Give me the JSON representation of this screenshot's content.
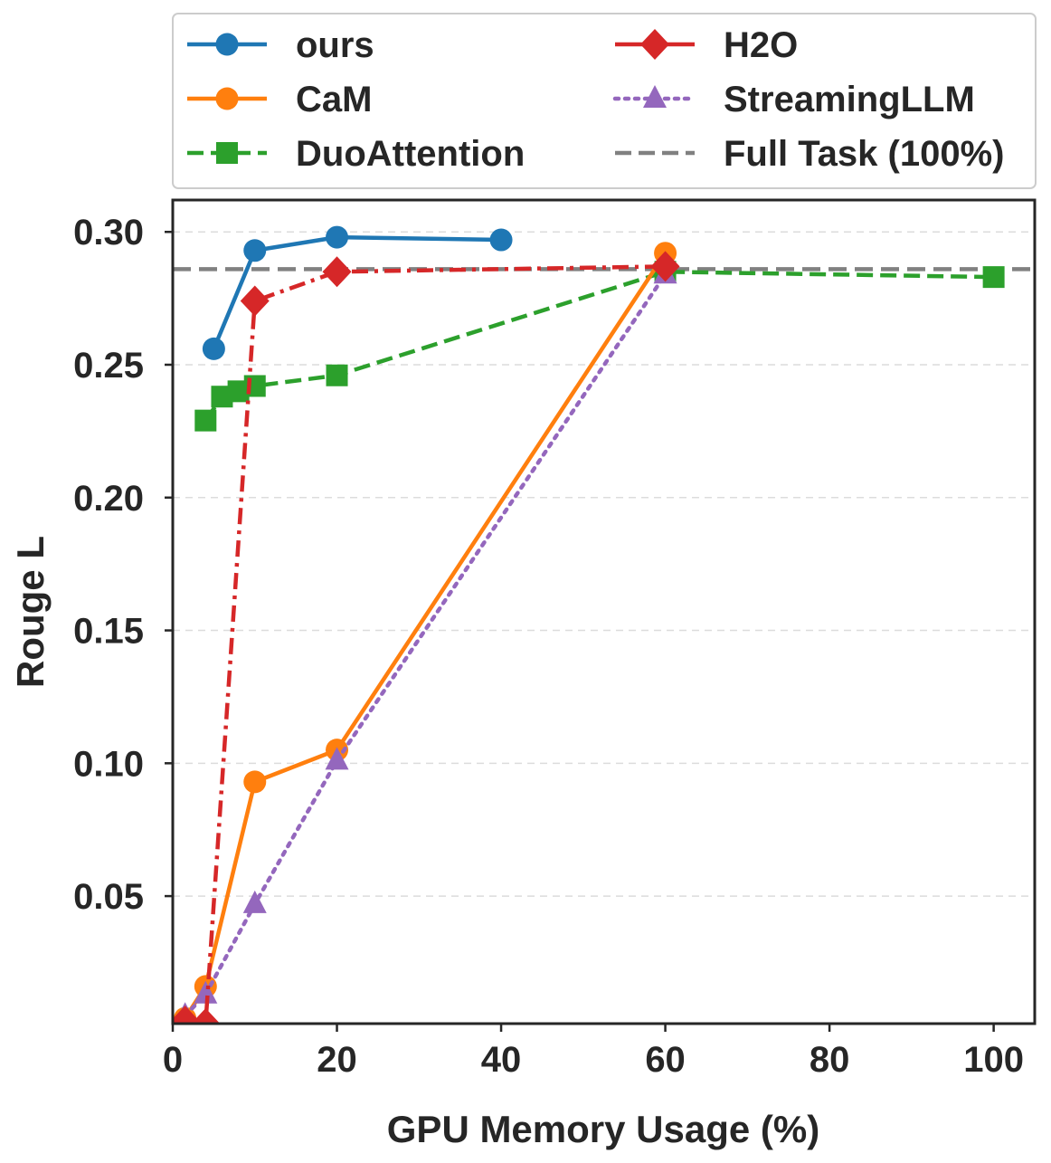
{
  "chart_data": {
    "type": "line",
    "title": "",
    "xlabel": "GPU Memory Usage (%)",
    "ylabel": "Rouge L",
    "xlim": [
      0,
      105
    ],
    "ylim": [
      0.002,
      0.312
    ],
    "xticks": [
      0,
      20,
      40,
      60,
      80,
      100
    ],
    "xtick_labels": [
      "0",
      "20",
      "40",
      "60",
      "80",
      "100"
    ],
    "yticks": [
      0.05,
      0.1,
      0.15,
      0.2,
      0.25,
      0.3
    ],
    "ytick_labels": [
      "0.05",
      "0.10",
      "0.15",
      "0.20",
      "0.25",
      "0.30"
    ],
    "grid": "horizontal dashed",
    "legend_position": "top",
    "series": [
      {
        "name": "ours",
        "color": "#1f77b4",
        "marker": "circle",
        "linestyle": "solid",
        "x": [
          5,
          10,
          20,
          40
        ],
        "y": [
          0.256,
          0.293,
          0.298,
          0.297
        ]
      },
      {
        "name": "CaM",
        "color": "#ff7f0e",
        "marker": "circle",
        "linestyle": "solid",
        "x": [
          1.5,
          4,
          10,
          20,
          60
        ],
        "y": [
          0.004,
          0.016,
          0.093,
          0.105,
          0.292
        ]
      },
      {
        "name": "DuoAttention",
        "color": "#2ca02c",
        "marker": "square",
        "linestyle": "dashed",
        "x": [
          4,
          6,
          8,
          10,
          20,
          60,
          100
        ],
        "y": [
          0.229,
          0.238,
          0.24,
          0.242,
          0.246,
          0.285,
          0.283
        ]
      },
      {
        "name": "H2O",
        "color": "#d62728",
        "marker": "diamond",
        "linestyle": "dashdot",
        "x": [
          1.5,
          4,
          10,
          20,
          60
        ],
        "y": [
          0.003,
          0.002,
          0.274,
          0.285,
          0.287
        ]
      },
      {
        "name": "StreamingLLM",
        "color": "#9467bd",
        "marker": "triangle",
        "linestyle": "dotted",
        "x": [
          1.5,
          4,
          10,
          20,
          60
        ],
        "y": [
          0.005,
          0.013,
          0.047,
          0.101,
          0.284
        ]
      },
      {
        "name": "Full Task (100%)",
        "color": "#808080",
        "marker": "none",
        "linestyle": "dashed-hline",
        "y": 0.286
      }
    ]
  }
}
